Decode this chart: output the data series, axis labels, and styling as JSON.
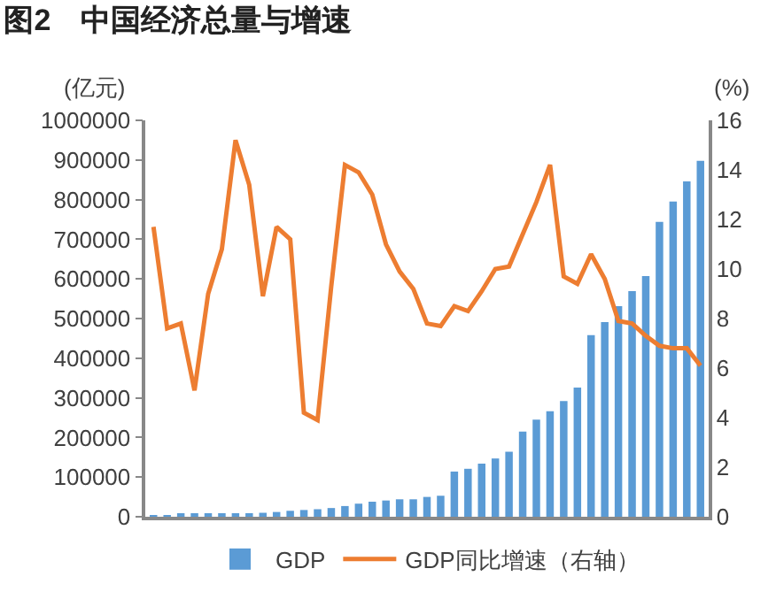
{
  "chart_data": {
    "type": "bar",
    "title": "图2　中国经济总量与增速",
    "ylabel": "(亿元)",
    "y2label": "(%)",
    "categories": [
      null,
      null,
      null,
      null,
      null,
      null,
      null,
      null,
      null,
      null,
      null,
      null,
      null,
      null,
      null,
      null,
      null,
      null,
      null,
      null,
      null,
      null,
      null,
      null,
      null,
      null,
      null,
      null,
      null,
      null,
      null,
      null,
      null,
      null,
      null,
      null,
      null,
      null,
      null,
      null,
      null
    ],
    "series": [
      {
        "name": "GDP",
        "color": "#5b9bd5",
        "values": [
          4000,
          4000,
          5000,
          5000,
          5000,
          6000,
          7000,
          9000,
          10000,
          12000,
          15000,
          17000,
          19000,
          22000,
          27000,
          33000,
          38000,
          41000,
          44000,
          44000,
          50000,
          53000,
          114000,
          121000,
          134000,
          147000,
          164000,
          215000,
          245000,
          266000,
          292000,
          326000,
          458000,
          491000,
          531000,
          569000,
          607000,
          744000,
          795000,
          846000,
          898000
        ]
      },
      {
        "name": "GDP同比增速（右轴）",
        "type": "line",
        "axis": "y2",
        "color": "#ed7d31",
        "values": [
          11.7,
          7.6,
          7.8,
          5.1,
          9.0,
          10.8,
          15.2,
          13.4,
          8.9,
          11.7,
          11.2,
          4.2,
          3.9,
          9.3,
          14.2,
          13.9,
          13.0,
          11.0,
          9.9,
          9.2,
          7.8,
          7.7,
          8.5,
          8.3,
          9.1,
          10.0,
          10.1,
          11.4,
          12.7,
          14.2,
          9.7,
          9.4,
          10.6,
          9.6,
          7.9,
          7.8,
          7.3,
          6.9,
          6.8,
          6.8,
          6.1
        ]
      }
    ],
    "ylim": [
      0,
      1000000
    ],
    "yticks": [
      0,
      100000,
      200000,
      300000,
      400000,
      500000,
      600000,
      700000,
      800000,
      900000,
      1000000
    ],
    "y2lim": [
      0,
      16
    ],
    "y2ticks": [
      0,
      2,
      4,
      6,
      8,
      10,
      12,
      14,
      16
    ],
    "grid": false,
    "legend": "bottom",
    "marker": "none",
    "line_style": "solid"
  }
}
